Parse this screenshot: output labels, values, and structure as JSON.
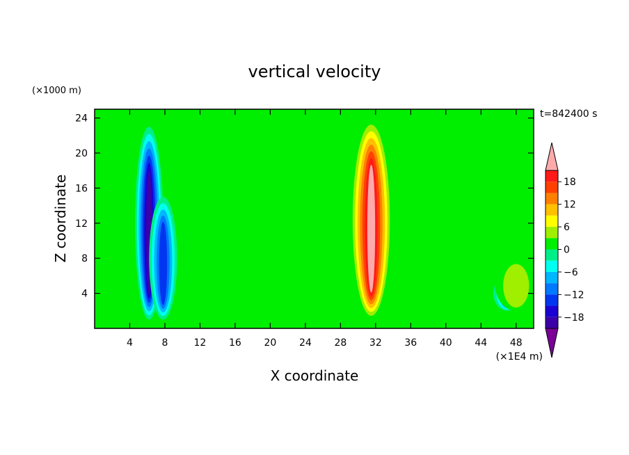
{
  "chart_data": {
    "type": "heatmap",
    "title": "vertical velocity",
    "xlabel": "X coordinate",
    "ylabel": "Z coordinate",
    "x_units": "(×1E4 m)",
    "y_units": "(×1000 m)",
    "time_label": "t=842400 s",
    "xlim": [
      0,
      50
    ],
    "ylim": [
      0,
      25
    ],
    "x_ticks": [
      4,
      8,
      12,
      16,
      20,
      24,
      28,
      32,
      36,
      40,
      44,
      48
    ],
    "y_ticks": [
      4,
      8,
      12,
      16,
      20,
      24
    ],
    "colorbar": {
      "levels": [
        -21,
        -18,
        -15,
        -12,
        -9,
        -6,
        -3,
        0,
        3,
        6,
        9,
        12,
        15,
        18,
        21
      ],
      "tick_labels": [
        "18",
        "12",
        "6",
        "0",
        "−6",
        "−12",
        "−18"
      ],
      "tick_values": [
        18,
        12,
        6,
        0,
        -6,
        -12,
        -18
      ],
      "colors": [
        "#7b0096",
        "#3c00a8",
        "#1a00d2",
        "#0036f0",
        "#0078ff",
        "#00b6ff",
        "#00ffee",
        "#00ee88",
        "#00ee00",
        "#a0ee00",
        "#ffff00",
        "#ffc000",
        "#ff8000",
        "#ff4000",
        "#ff1a1a",
        "#ffaaaa"
      ],
      "extend": "both"
    },
    "features": [
      {
        "kind": "downdraft",
        "x_center": 6.2,
        "z_range": [
          1,
          23
        ],
        "min_value": -20
      },
      {
        "kind": "downdraft",
        "x_center": 7.8,
        "z_range": [
          1,
          15
        ],
        "min_value": -15
      },
      {
        "kind": "updraft",
        "x_center": 31.5,
        "z_range": [
          1,
          24
        ],
        "max_value": 22
      },
      {
        "kind": "downdraft",
        "x_center": 47,
        "z_range": [
          2,
          6
        ],
        "min_value": -12
      },
      {
        "kind": "updraft",
        "x_center": 48,
        "z_range": [
          2,
          8
        ],
        "max_value": 6
      }
    ]
  }
}
